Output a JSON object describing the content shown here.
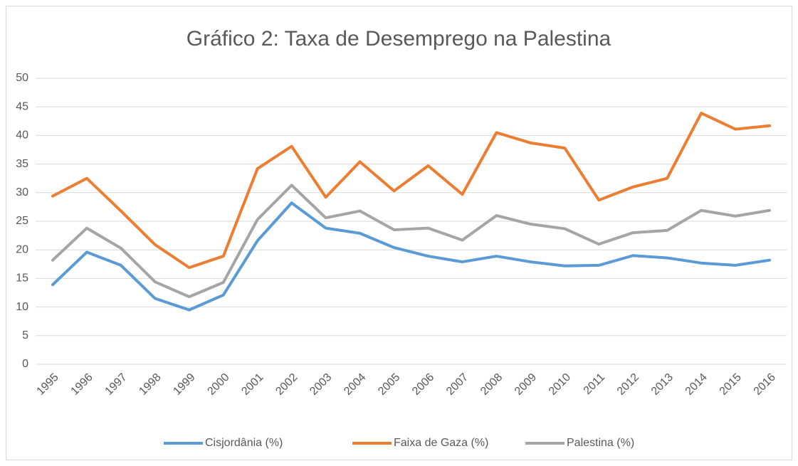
{
  "chart_data": {
    "type": "line",
    "title": "Gráfico 2: Taxa de Desemprego na Palestina",
    "categories": [
      "1995",
      "1996",
      "1997",
      "1998",
      "1999",
      "2000",
      "2001",
      "2002",
      "2003",
      "2004",
      "2005",
      "2006",
      "2007",
      "2008",
      "2009",
      "2010",
      "2011",
      "2012",
      "2013",
      "2014",
      "2015",
      "2016"
    ],
    "series": [
      {
        "name": "Cisjordânia (%)",
        "color": "#5b9bd5",
        "values": [
          13.9,
          19.6,
          17.3,
          11.5,
          9.5,
          12.1,
          21.6,
          28.2,
          23.8,
          22.9,
          20.4,
          18.9,
          17.9,
          18.9,
          17.9,
          17.2,
          17.3,
          19.0,
          18.6,
          17.7,
          17.3,
          18.2
        ]
      },
      {
        "name": "Faixa de Gaza (%)",
        "color": "#ed7d31",
        "values": [
          29.4,
          32.5,
          26.8,
          20.9,
          16.9,
          18.9,
          34.2,
          38.1,
          29.2,
          35.4,
          30.3,
          34.7,
          29.7,
          40.5,
          38.7,
          37.8,
          28.7,
          31.0,
          32.5,
          43.9,
          41.1,
          41.7
        ]
      },
      {
        "name": "Palestina (%)",
        "color": "#a5a5a5",
        "values": [
          18.2,
          23.8,
          20.3,
          14.4,
          11.8,
          14.3,
          25.3,
          31.3,
          25.6,
          26.8,
          23.5,
          23.8,
          21.7,
          26.0,
          24.5,
          23.7,
          21.0,
          23.0,
          23.4,
          26.9,
          25.9,
          26.9
        ]
      }
    ],
    "ylim": [
      0,
      50
    ],
    "yticks": [
      0,
      5,
      10,
      15,
      20,
      25,
      30,
      35,
      40,
      45,
      50
    ],
    "grid": true,
    "legend": "bottom"
  }
}
